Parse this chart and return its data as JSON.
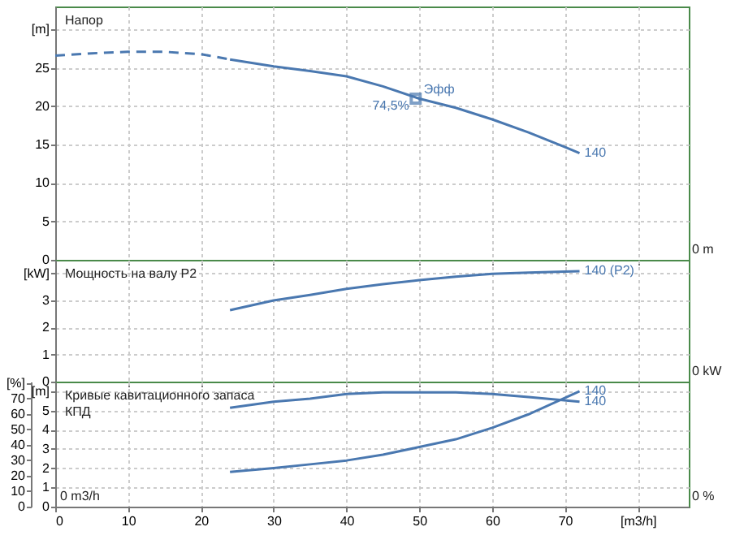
{
  "chart_data": [
    {
      "type": "line",
      "title": "Напор",
      "xlim": [
        0,
        87
      ],
      "xticks": [
        0,
        10,
        20,
        30,
        40,
        50,
        60,
        70,
        80
      ],
      "ylim": [
        0,
        33
      ],
      "yticks": [
        0,
        5,
        10,
        15,
        20,
        25,
        {
          "value": 30,
          "label": "[m]"
        }
      ],
      "grid": true,
      "tick_labels": "y",
      "series": [
        {
          "color": "#4a78b0",
          "line_style": "dashed",
          "x": [
            0,
            5,
            10,
            15,
            20,
            24
          ],
          "values": [
            26.6,
            26.9,
            27.1,
            27.1,
            26.8,
            26.1
          ]
        },
        {
          "name": "140",
          "color": "#4a78b0",
          "line_style": "solid",
          "x": [
            24,
            30,
            35,
            40,
            45,
            50,
            55,
            60,
            65,
            70,
            72
          ],
          "values": [
            26.1,
            25.2,
            24.6,
            23.9,
            22.6,
            21.0,
            19.8,
            18.3,
            16.6,
            14.7,
            13.9
          ]
        },
        {
          "type": "scatter",
          "marker": "square",
          "color": "#4a78b0",
          "x": [
            49.5
          ],
          "values": [
            21.0
          ]
        }
      ],
      "annotations": [
        {
          "text": "Эфф",
          "x": 49.5,
          "y": 21.0
        },
        {
          "text": "74,5%",
          "x": 49.5,
          "y": 21.0
        },
        "0 m"
      ]
    },
    {
      "type": "line",
      "title": "Мощность на валу P2",
      "xlim": [
        0,
        87
      ],
      "xticks": [
        0,
        10,
        20,
        30,
        40,
        50,
        60,
        70,
        80
      ],
      "ylim": [
        0,
        4.5
      ],
      "yticks": [
        0,
        1,
        2,
        3,
        {
          "value": 4,
          "label": "[kW]"
        }
      ],
      "grid": true,
      "tick_labels": "y",
      "series": [
        {
          "name": "140 (P2)",
          "color": "#4a78b0",
          "x": [
            24,
            30,
            35,
            40,
            45,
            50,
            55,
            60,
            65,
            72
          ],
          "values": [
            2.64,
            3.0,
            3.2,
            3.43,
            3.6,
            3.75,
            3.88,
            3.98,
            4.03,
            4.08
          ]
        }
      ],
      "annotations": [
        "0 kW"
      ]
    },
    {
      "type": "line",
      "title": "Кривые кавитационного запаса",
      "subtitle": "КПД",
      "xlim": [
        0,
        87
      ],
      "xticks": [
        0,
        10,
        20,
        30,
        40,
        50,
        60,
        70,
        {
          "value": 80,
          "label": "[m3/h]"
        }
      ],
      "ylim": [
        0,
        6.5
      ],
      "yticks": [
        0,
        1,
        2,
        3,
        4,
        5,
        {
          "value": 6,
          "label": "[m]"
        }
      ],
      "y2lim": [
        0,
        81
      ],
      "y2ticks": [
        0,
        10,
        20,
        30,
        40,
        50,
        60,
        70,
        {
          "value": 80,
          "label": "[%]"
        }
      ],
      "grid": true,
      "series": [
        {
          "name": "140",
          "color": "#4a78b0",
          "x": [
            24,
            30,
            35,
            40,
            45,
            50,
            55,
            60,
            65,
            72
          ],
          "values": [
            1.8,
            2.0,
            2.2,
            2.4,
            2.7,
            3.1,
            3.5,
            4.1,
            4.8,
            6.0
          ]
        },
        {
          "name": "140",
          "color": "#4a78b0",
          "axis": "y2",
          "x": [
            24,
            30,
            35,
            40,
            45,
            50,
            55,
            60,
            65,
            72
          ],
          "values": [
            64,
            68,
            70,
            73,
            74,
            74,
            74,
            73,
            71,
            68
          ]
        }
      ],
      "annotations": [
        "0 %",
        "0 m3/h"
      ]
    }
  ]
}
